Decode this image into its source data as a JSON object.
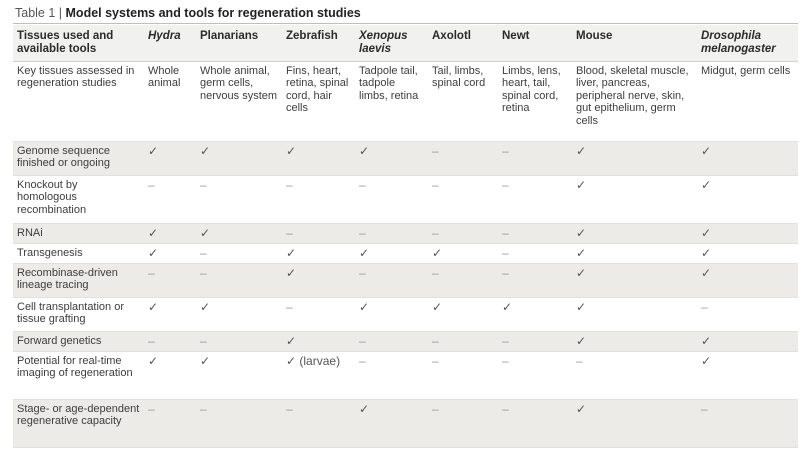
{
  "title": {
    "label": "Table 1 | ",
    "text": "Model systems and tools for regeneration studies"
  },
  "columns": [
    {
      "label": "Tissues used and available tools",
      "italic": false
    },
    {
      "label": "Hydra",
      "italic": true
    },
    {
      "label": "Planarians",
      "italic": false
    },
    {
      "label": "Zebrafish",
      "italic": false
    },
    {
      "label": "Xenopus laevis",
      "italic": true
    },
    {
      "label": "Axolotl",
      "italic": false
    },
    {
      "label": "Newt",
      "italic": false
    },
    {
      "label": "Mouse",
      "italic": false
    },
    {
      "label": "Drosophila melanogaster",
      "italic": true
    }
  ],
  "rows": [
    {
      "label": "Key tissues assessed in regeneration studies",
      "cells": [
        "Whole animal",
        "Whole animal, germ cells, nervous system",
        "Fins, heart, retina, spinal cord, hair cells",
        "Tadpole tail, tadpole limbs, retina",
        "Tail, limbs, spinal cord",
        "Limbs, lens, heart, tail, spinal cord, retina",
        "Blood, skeletal muscle, liver, pancreas, peripheral nerve, skin, gut epithelium, germ cells",
        "Midgut, germ cells"
      ]
    },
    {
      "label": "Genome sequence finished or ongoing",
      "cells": [
        "✓",
        "✓",
        "✓",
        "✓",
        "–",
        "–",
        "✓",
        "✓"
      ]
    },
    {
      "label": "Knockout by homologous recombination",
      "cells": [
        "–",
        "–",
        "–",
        "–",
        "–",
        "–",
        "✓",
        "✓"
      ]
    },
    {
      "label": "RNAi",
      "cells": [
        "✓",
        "✓",
        "–",
        "–",
        "–",
        "–",
        "✓",
        "✓"
      ]
    },
    {
      "label": "Transgenesis",
      "cells": [
        "✓",
        "–",
        "✓",
        "✓",
        "✓",
        "–",
        "✓",
        "✓"
      ]
    },
    {
      "label": "Recombinase-driven lineage tracing",
      "cells": [
        "–",
        "–",
        "✓",
        "–",
        "–",
        "–",
        "✓",
        "✓"
      ]
    },
    {
      "label": "Cell transplantation or tissue grafting",
      "cells": [
        "✓",
        "✓",
        "–",
        "✓",
        "✓",
        "✓",
        "✓",
        "–"
      ]
    },
    {
      "label": "Forward genetics",
      "cells": [
        "–",
        "–",
        "✓",
        "–",
        "–",
        "–",
        "✓",
        "✓"
      ]
    },
    {
      "label": "Potential for real-time imaging of regeneration",
      "cells": [
        "✓",
        "✓",
        "✓ (larvae)",
        "–",
        "–",
        "–",
        "–",
        "✓"
      ]
    },
    {
      "label": "Stage- or age-dependent regenerative capacity",
      "cells": [
        "–",
        "–",
        "–",
        "✓",
        "–",
        "–",
        "✓",
        "–"
      ]
    }
  ]
}
